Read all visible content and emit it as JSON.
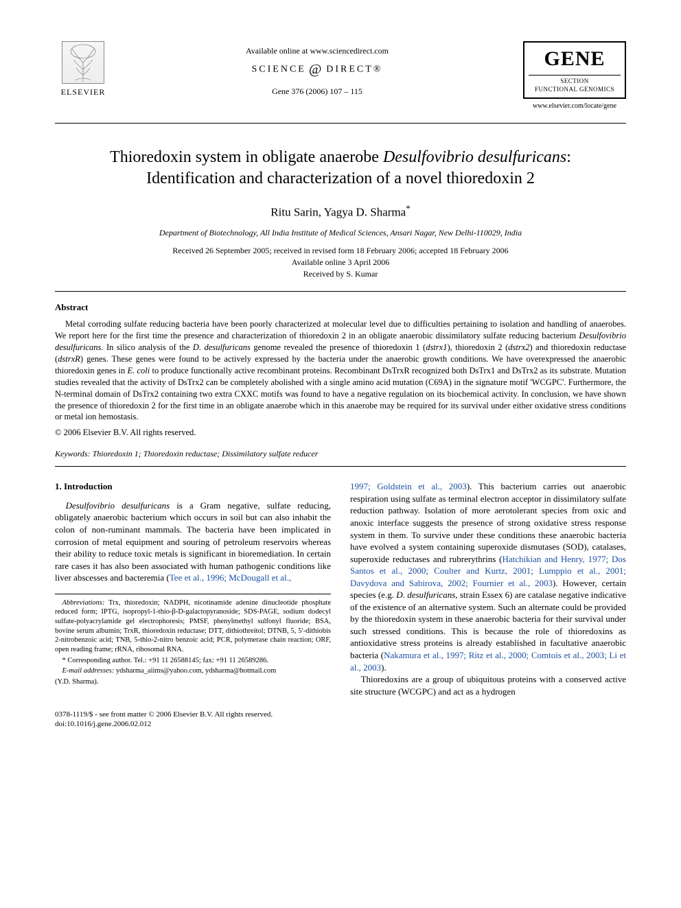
{
  "header": {
    "publisher_logo_label": "ELSEVIER",
    "available_line": "Available online at www.sciencedirect.com",
    "sd_left": "SCIENCE",
    "sd_right": "DIRECT®",
    "citation": "Gene 376 (2006) 107 – 115",
    "journal_box": {
      "title": "GENE",
      "section": "SECTION",
      "subsection": "FUNCTIONAL GENOMICS",
      "url": "www.elsevier.com/locate/gene"
    }
  },
  "article": {
    "title_line1_pre": "Thioredoxin system in obligate anaerobe ",
    "title_line1_ital": "Desulfovibrio desulfuricans",
    "title_line1_post": ":",
    "title_line2": "Identification and characterization of a novel thioredoxin 2",
    "authors": "Ritu Sarin, Yagya D. Sharma",
    "corr_mark": "*",
    "affiliation": "Department of Biotechnology, All India Institute of Medical Sciences, Ansari Nagar, New Delhi-110029, India",
    "dates_line1": "Received 26 September 2005; received in revised form 18 February 2006; accepted 18 February 2006",
    "dates_line2": "Available online 3 April 2006",
    "dates_line3": "Received by S. Kumar"
  },
  "abstract": {
    "heading": "Abstract",
    "body_parts": [
      {
        "t": "plain",
        "v": "Metal corroding sulfate reducing bacteria have been poorly characterized at molecular level due to difficulties pertaining to isolation and handling of anaerobes. We report here for the first time the presence and characterization of thioredoxin 2 in an obligate anaerobic dissimilatory sulfate reducing bacterium "
      },
      {
        "t": "ital",
        "v": "Desulfovibrio desulfuricans"
      },
      {
        "t": "plain",
        "v": ". In silico analysis of the "
      },
      {
        "t": "ital",
        "v": "D. desulfuricans"
      },
      {
        "t": "plain",
        "v": " genome revealed the presence of thioredoxin 1 ("
      },
      {
        "t": "ital",
        "v": "dstrx1"
      },
      {
        "t": "plain",
        "v": "), thioredoxin 2 ("
      },
      {
        "t": "ital",
        "v": "dstrx2"
      },
      {
        "t": "plain",
        "v": ") and thioredoxin reductase ("
      },
      {
        "t": "ital",
        "v": "dstrxR"
      },
      {
        "t": "plain",
        "v": ") genes. These genes were found to be actively expressed by the bacteria under the anaerobic growth conditions. We have overexpressed the anaerobic thioredoxin genes in "
      },
      {
        "t": "ital",
        "v": "E. coli"
      },
      {
        "t": "plain",
        "v": " to produce functionally active recombinant proteins. Recombinant DsTrxR recognized both DsTrx1 and DsTrx2 as its substrate. Mutation studies revealed that the activity of DsTrx2 can be completely abolished with a single amino acid mutation (C69A) in the signature motif 'WCGPC'. Furthermore, the N-terminal domain of DsTrx2 containing two extra CXXC motifs was found to have a negative regulation on its biochemical activity. In conclusion, we have shown the presence of thioredoxin 2 for the first time in an obligate anaerobe which in this anaerobe may be required for its survival under either oxidative stress conditions or metal ion hemostasis."
      }
    ],
    "copyright": "© 2006 Elsevier B.V. All rights reserved."
  },
  "keywords": {
    "label": "Keywords:",
    "value": " Thioredoxin 1; Thioredoxin reductase; Dissimilatory sulfate reducer"
  },
  "body": {
    "section_heading": "1. Introduction",
    "col1_parts": [
      {
        "t": "ital",
        "v": "Desulfovibrio desulfuricans"
      },
      {
        "t": "plain",
        "v": " is a Gram negative, sulfate reducing, obligately anaerobic bacterium which occurs in soil but can also inhabit the colon of non-ruminant mammals. The bacteria have been implicated in corrosion of metal equipment and souring of petroleum reservoirs whereas their ability to reduce toxic metals is significant in bioremediation. In certain rare cases it has also been associated with human pathogenic conditions like liver abscesses and bacteremia ("
      },
      {
        "t": "link",
        "v": "Tee et al., 1996; McDougall et al.,"
      }
    ],
    "col2_parts": [
      {
        "t": "link",
        "v": "1997; Goldstein et al., 2003"
      },
      {
        "t": "plain",
        "v": "). This bacterium carries out anaerobic respiration using sulfate as terminal electron acceptor in dissimilatory sulfate reduction pathway. Isolation of more aerotolerant species from oxic and anoxic interface suggests the presence of strong oxidative stress response system in them. To survive under these conditions these anaerobic bacteria have evolved a system containing superoxide dismutases (SOD), catalases, superoxide reductases and rubrerythrins ("
      },
      {
        "t": "link",
        "v": "Hatchikian and Henry, 1977; Dos Santos et al., 2000; Coulter and Kurtz, 2001; Lumppio et al., 2001; Davydova and Sabirova, 2002; Fournier et al., 2003"
      },
      {
        "t": "plain",
        "v": "). However, certain species (e.g. "
      },
      {
        "t": "ital",
        "v": "D. desulfuricans"
      },
      {
        "t": "plain",
        "v": ", strain Essex 6) are catalase negative indicative of the existence of an alternative system. Such an alternate could be provided by the thioredoxin system in these anaerobic bacteria for their survival under such stressed conditions. This is because the role of thioredoxins as antioxidative stress proteins is already established in facultative anaerobic bacteria ("
      },
      {
        "t": "link",
        "v": "Nakamura et al., 1997; Ritz et al., 2000; Comtois et al., 2003; Li et al., 2003"
      },
      {
        "t": "plain",
        "v": ")."
      }
    ],
    "col2_para2": "Thioredoxins are a group of ubiquitous proteins with a conserved active site structure (WCGPC) and act as a hydrogen"
  },
  "footnotes": {
    "abbrev_label": "Abbreviations:",
    "abbrev_body": " Trx, thioredoxin; NADPH, nicotinamide adenine dinucleotide phosphate reduced form; IPTG, isopropyl-1-thio-β-D-galactopyranoside; SDS-PAGE, sodium dodecyl sulfate-polyacrylamide gel electrophoresis; PMSF, phenylmethyl sulfonyl fluoride; BSA, bovine serum albumin; TrxR, thioredoxin reductase; DTT, dithiothreitol; DTNB, 5, 5′-dithiobis 2-nitrobenzoic acid; TNB, 5-thio-2-nitro benzoic acid; PCR, polymerase chain reaction; ORF, open reading frame; rRNA, ribosomal RNA.",
    "corr_label": "* Corresponding author. Tel.: +91 11 26588145; fax: +91 11 26589286.",
    "email_label": "E-mail addresses:",
    "emails": " ydsharma_aiims@yahoo.com, ydsharma@hotmail.com",
    "email_attr": "(Y.D. Sharma)."
  },
  "bottom": {
    "line1": "0378-1119/$ - see front matter © 2006 Elsevier B.V. All rights reserved.",
    "line2": "doi:10.1016/j.gene.2006.02.012"
  },
  "colors": {
    "link": "#1a4fa3",
    "text": "#000000",
    "bg": "#ffffff"
  }
}
